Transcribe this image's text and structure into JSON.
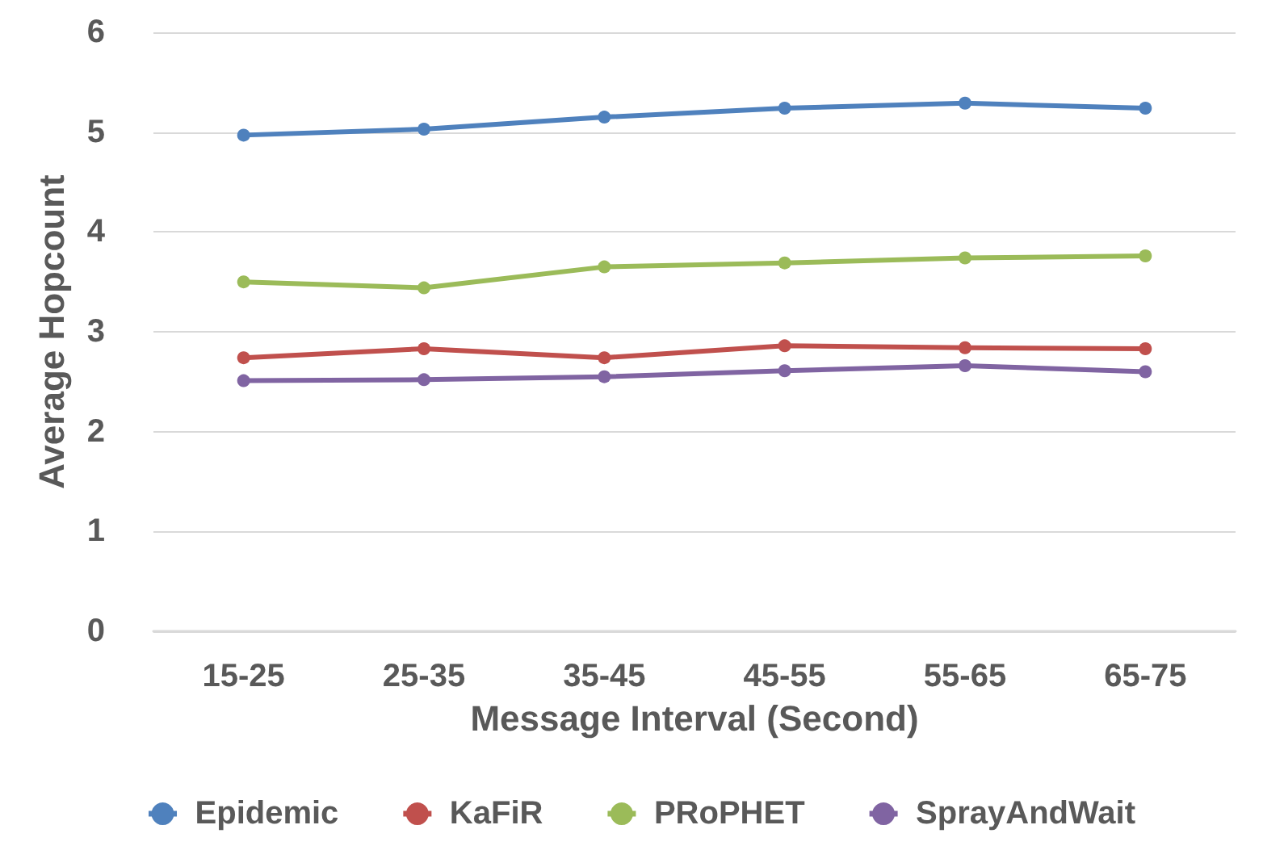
{
  "chart_data": {
    "type": "line",
    "xlabel": "Message Interval (Second)",
    "ylabel": "Average Hopcount",
    "categories": [
      "15-25",
      "25-35",
      "35-45",
      "45-55",
      "55-65",
      "65-75"
    ],
    "series": [
      {
        "name": "Epidemic",
        "color": "#4f81bd",
        "values": [
          4.97,
          5.03,
          5.15,
          5.24,
          5.29,
          5.24
        ]
      },
      {
        "name": "KaFiR",
        "color": "#c0504d",
        "values": [
          2.74,
          2.83,
          2.74,
          2.86,
          2.84,
          2.83
        ]
      },
      {
        "name": "PRoPHET",
        "color": "#9bbb59",
        "values": [
          3.5,
          3.44,
          3.65,
          3.69,
          3.74,
          3.76
        ]
      },
      {
        "name": "SprayAndWait",
        "color": "#8064a2",
        "values": [
          2.51,
          2.52,
          2.55,
          2.61,
          2.66,
          2.6
        ]
      }
    ],
    "ylim": [
      0,
      6
    ],
    "yticks": [
      0,
      1,
      2,
      3,
      4,
      5,
      6
    ],
    "grid": "y",
    "legend": "bottom",
    "marker": "circle",
    "line_style": "solid"
  }
}
